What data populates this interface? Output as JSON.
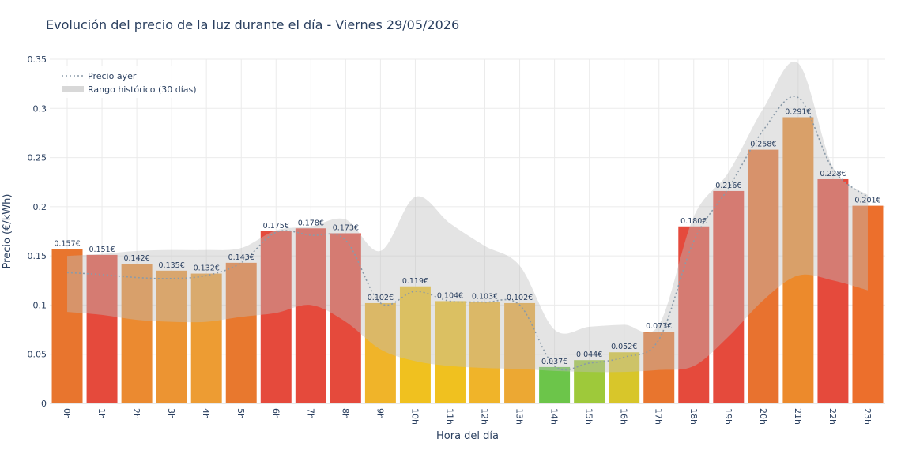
{
  "chart_data": {
    "type": "bar",
    "title": "Evolución del precio de la luz durante el día - Viernes 29/05/2026",
    "xlabel": "Hora del día",
    "ylabel": "Precio (€/kWh)",
    "ylim": [
      0,
      0.35
    ],
    "yticks": [
      0,
      0.05,
      0.1,
      0.15,
      0.2,
      0.25,
      0.3,
      0.35
    ],
    "ytick_labels": [
      "0",
      "0.05",
      "0.1",
      "0.15",
      "0.2",
      "0.25",
      "0.3",
      "0.35"
    ],
    "grid": true,
    "legend_position": "top-left",
    "categories": [
      "0h",
      "1h",
      "2h",
      "3h",
      "4h",
      "5h",
      "6h",
      "7h",
      "8h",
      "9h",
      "10h",
      "11h",
      "12h",
      "13h",
      "14h",
      "15h",
      "16h",
      "17h",
      "18h",
      "19h",
      "20h",
      "21h",
      "22h",
      "23h"
    ],
    "series": [
      {
        "values": [
          0.157,
          0.151,
          0.142,
          0.135,
          0.132,
          0.143,
          0.175,
          0.178,
          0.173,
          0.102,
          0.119,
          0.104,
          0.103,
          0.102,
          0.037,
          0.044,
          0.052,
          0.073,
          0.18,
          0.216,
          0.258,
          0.291,
          0.228,
          0.201
        ],
        "labels": [
          "0.157€",
          "0.151€",
          "0.142€",
          "0.135€",
          "0.132€",
          "0.143€",
          "0.175€",
          "0.178€",
          "0.173€",
          "0.102€",
          "0.119€",
          "0.104€",
          "0.103€",
          "0.102€",
          "0.037€",
          "0.044€",
          "0.052€",
          "0.073€",
          "0.180€",
          "0.216€",
          "0.258€",
          "0.291€",
          "0.228€",
          "0.201€"
        ],
        "colors": [
          "#e8752e",
          "#e54a3c",
          "#eb8a30",
          "#ec9432",
          "#ed9c33",
          "#e8782e",
          "#e54a3c",
          "#e54a3c",
          "#e54a3c",
          "#f0b429",
          "#f0c11f",
          "#f0c11f",
          "#f0b429",
          "#eca833",
          "#6cc54a",
          "#9ec93a",
          "#d8c62a",
          "#e8752e",
          "#e54a3c",
          "#e54a3c",
          "#e8722f",
          "#ec8a2c",
          "#e54a3c",
          "#ec6f2c"
        ]
      },
      {
        "name": "Precio ayer",
        "type": "line",
        "color": "#8a9aa8",
        "values": [
          0.133,
          0.131,
          0.128,
          0.127,
          0.13,
          0.143,
          0.174,
          0.171,
          0.166,
          0.102,
          0.114,
          0.104,
          0.103,
          0.1,
          0.038,
          0.041,
          0.047,
          0.065,
          0.165,
          0.219,
          0.278,
          0.311,
          0.238,
          0.21
        ]
      },
      {
        "name": "Rango histórico (30 días)",
        "type": "area",
        "color": "#d8d8d8",
        "upper": [
          0.15,
          0.152,
          0.155,
          0.156,
          0.156,
          0.158,
          0.176,
          0.18,
          0.187,
          0.155,
          0.21,
          0.183,
          0.16,
          0.14,
          0.075,
          0.078,
          0.08,
          0.08,
          0.19,
          0.235,
          0.3,
          0.346,
          0.24,
          0.212
        ],
        "lower": [
          0.093,
          0.09,
          0.085,
          0.083,
          0.083,
          0.088,
          0.092,
          0.1,
          0.083,
          0.055,
          0.043,
          0.038,
          0.036,
          0.035,
          0.033,
          0.032,
          0.032,
          0.034,
          0.038,
          0.068,
          0.105,
          0.13,
          0.125,
          0.115
        ]
      }
    ]
  }
}
